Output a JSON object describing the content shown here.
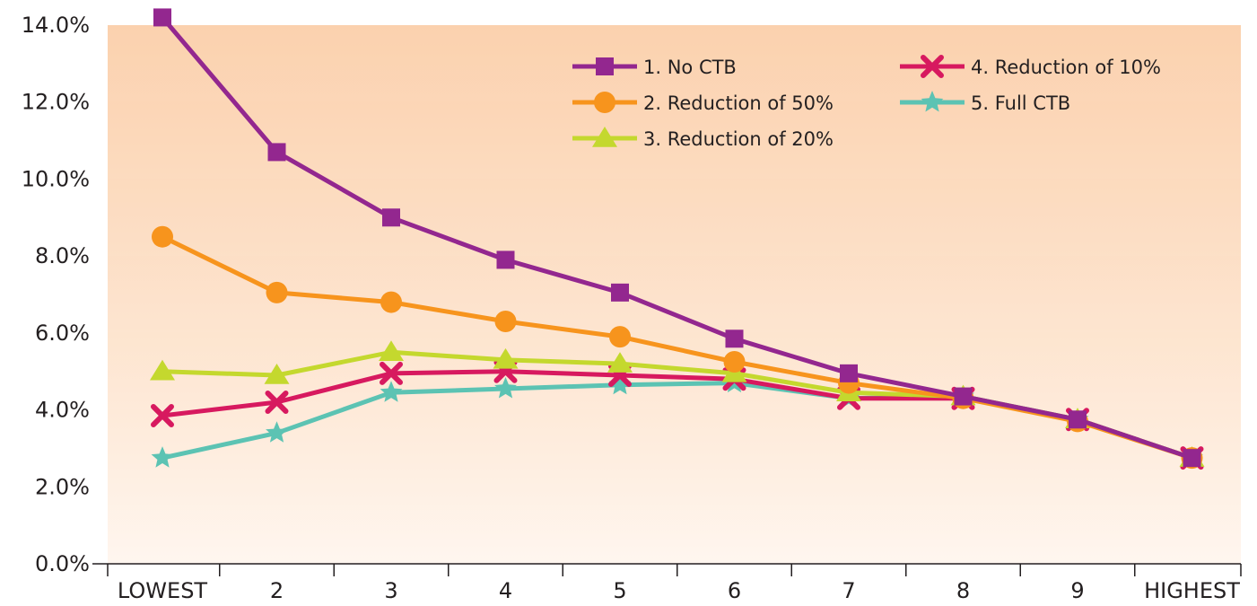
{
  "chart_data": {
    "type": "line",
    "categories": [
      "LOWEST",
      "2",
      "3",
      "4",
      "5",
      "6",
      "7",
      "8",
      "9",
      "HIGHEST"
    ],
    "ylim": [
      0,
      14
    ],
    "yticks": [
      0,
      2,
      4,
      6,
      8,
      10,
      12,
      14
    ],
    "ytick_labels": [
      "0.0%",
      "2.0%",
      "4.0%",
      "6.0%",
      "8.0%",
      "10.0%",
      "12.0%",
      "14.0%"
    ],
    "y_format": "percent",
    "legend_position": "top-right",
    "grid": false,
    "series": [
      {
        "name": "1. No CTB",
        "color": "#93278f",
        "marker": "square",
        "values": [
          14.2,
          10.7,
          9.0,
          7.9,
          7.05,
          5.85,
          4.95,
          4.35,
          3.75,
          2.75
        ]
      },
      {
        "name": "2. Reduction of 50%",
        "color": "#f7941d",
        "marker": "circle",
        "values": [
          8.5,
          7.05,
          6.8,
          6.3,
          5.9,
          5.25,
          4.7,
          4.3,
          3.7,
          2.75
        ]
      },
      {
        "name": "3. Reduction of 20%",
        "color": "#c4d82e",
        "marker": "triangle",
        "values": [
          5.0,
          4.9,
          5.5,
          5.3,
          5.2,
          4.95,
          4.45,
          4.35,
          3.75,
          2.75
        ]
      },
      {
        "name": "4. Reduction of 10%",
        "color": "#d7195f",
        "marker": "x",
        "values": [
          3.85,
          4.2,
          4.95,
          5.0,
          4.9,
          4.8,
          4.3,
          4.3,
          3.75,
          2.75
        ]
      },
      {
        "name": "5. Full CTB",
        "color": "#5cc3b3",
        "marker": "star",
        "values": [
          2.75,
          3.4,
          4.45,
          4.55,
          4.65,
          4.7,
          4.3,
          4.35,
          3.75,
          2.75
        ]
      }
    ]
  }
}
